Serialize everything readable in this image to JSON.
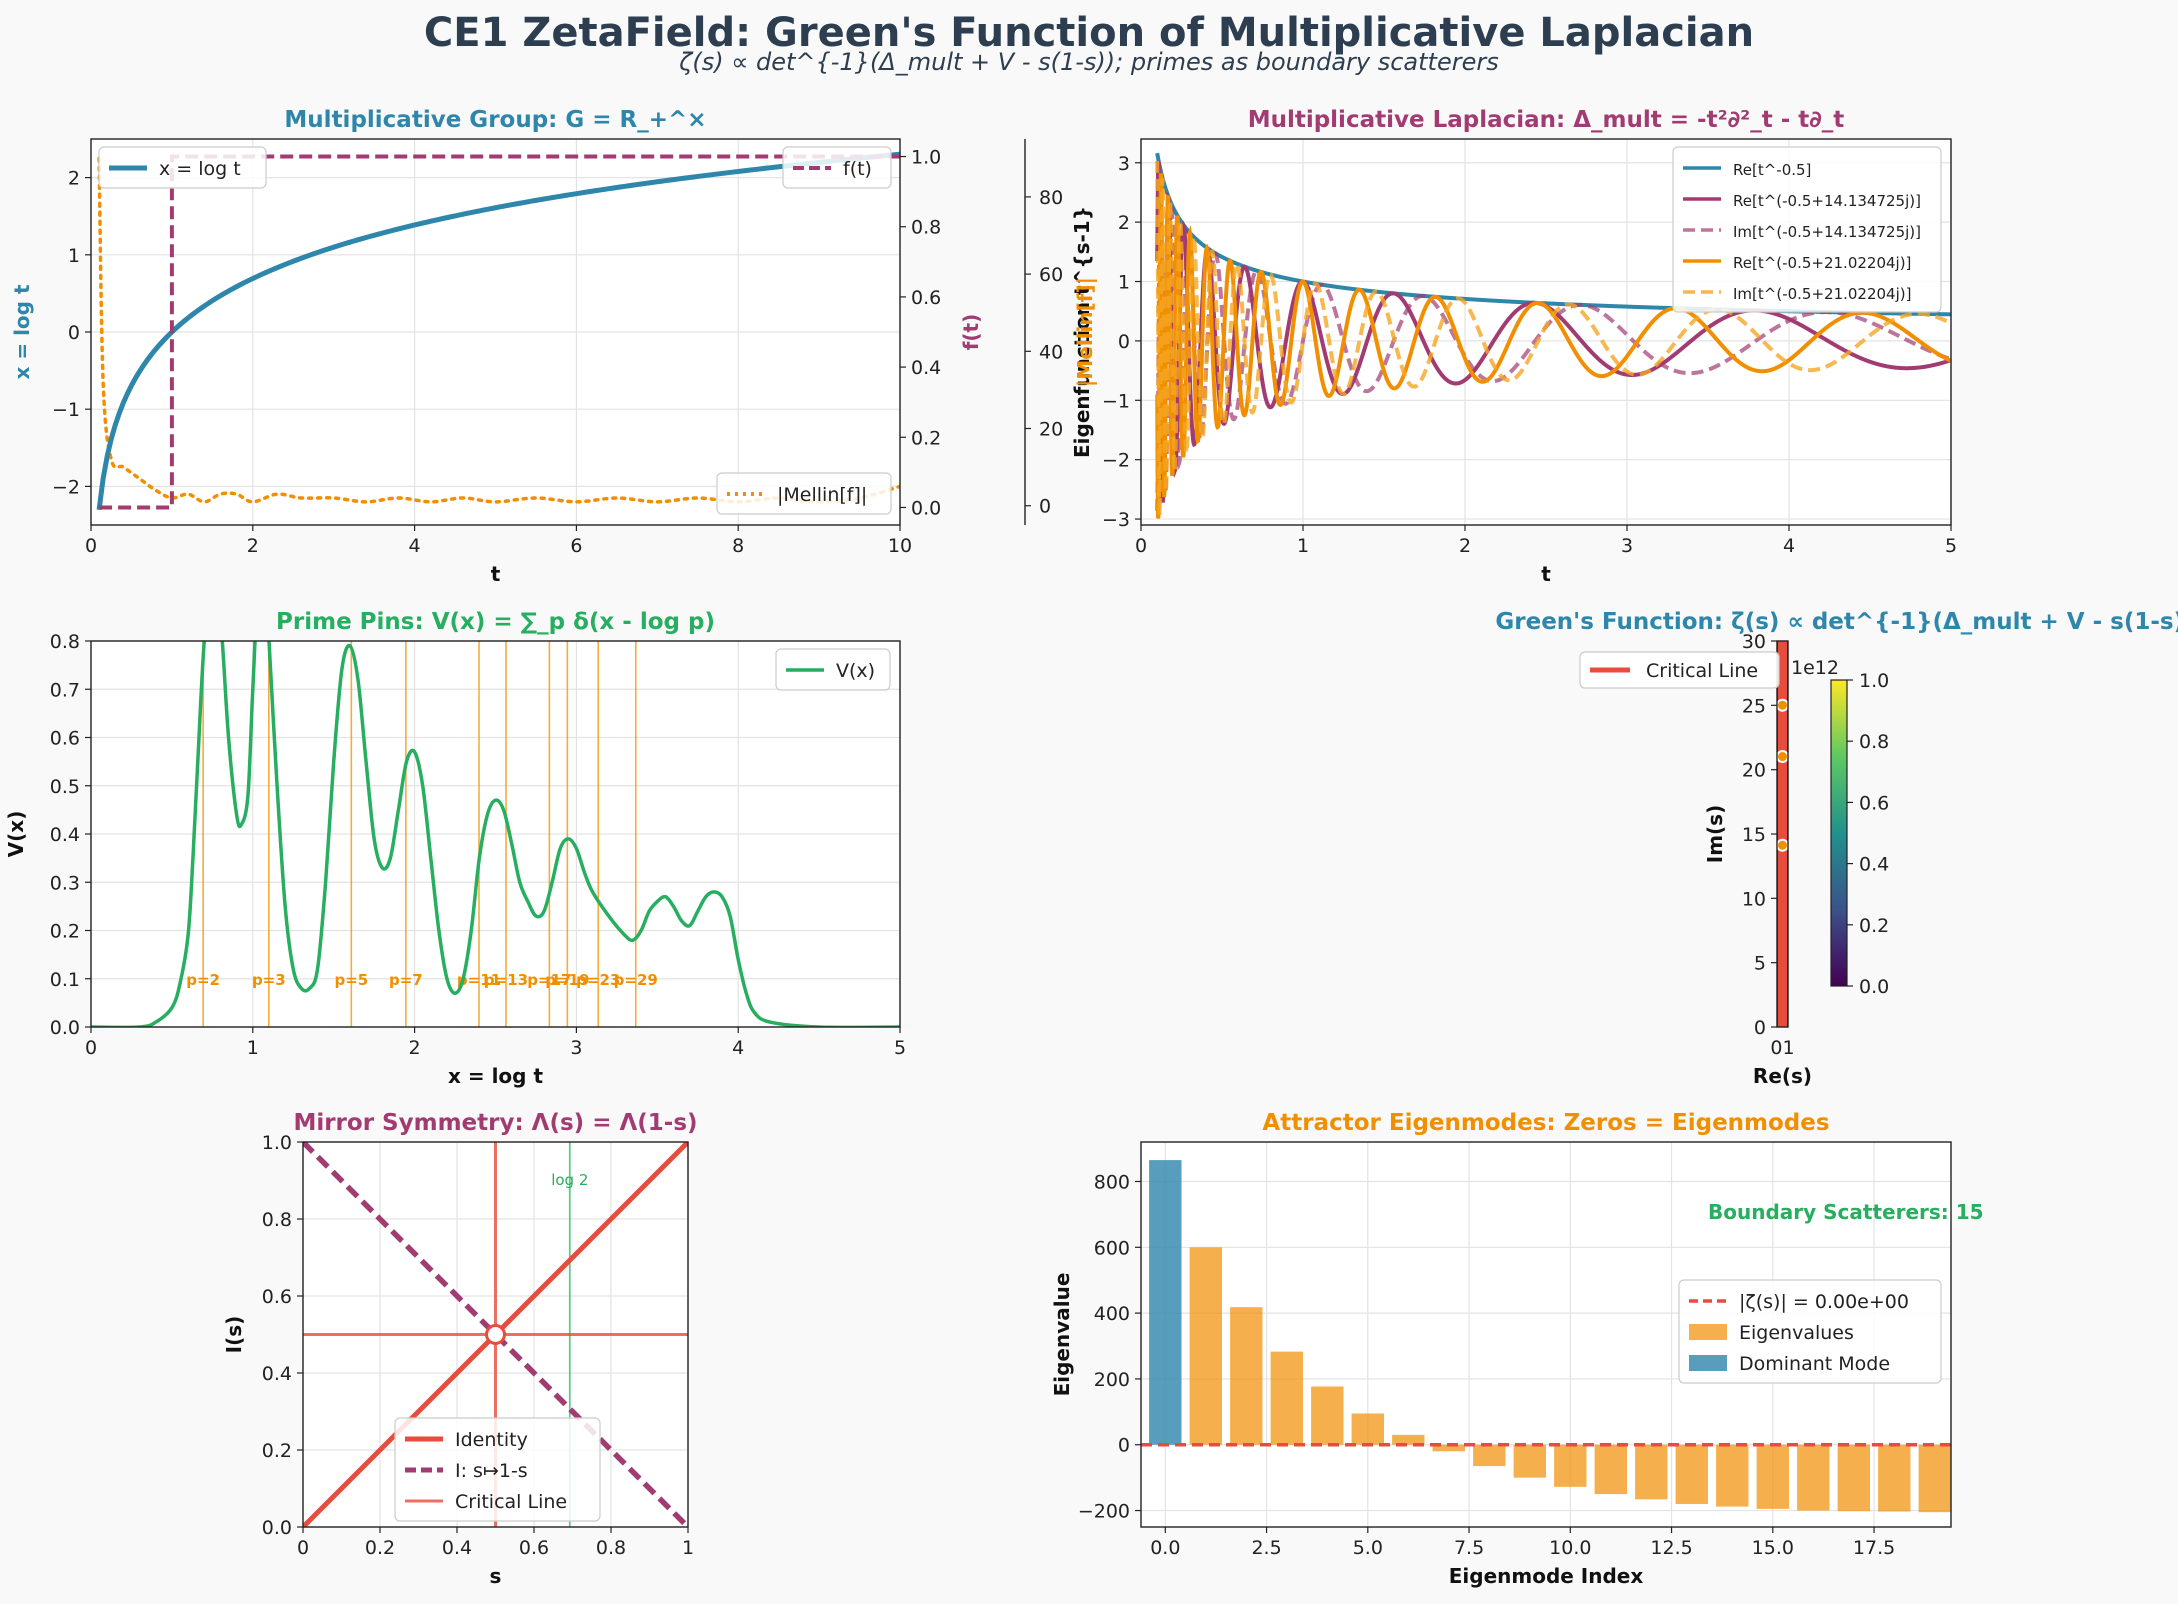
{
  "figure": {
    "title": "CE1 ZetaField: Green's Function of Multiplicative Laplacian",
    "subtitle": "ζ(s) ∝ det^{-1}(Δ_mult + V - s(1-s)); primes as boundary scatterers"
  },
  "colors": {
    "blue": "#2e86ab",
    "purple": "#a23b72",
    "orange": "#f18f01",
    "green": "#27ae60",
    "red": "#e74c3c",
    "text": "#2c3e50"
  },
  "chart_data": [
    {
      "id": "mult_group",
      "type": "line",
      "title": "Multiplicative Group: G = R_+^×",
      "xlabel": "t",
      "ylabel": "x = log t",
      "ylabel_right": "f(t)",
      "xlim": [
        0,
        10
      ],
      "ylim": [
        -2.5,
        2.5
      ],
      "ylim_right": [
        -0.05,
        1.05
      ],
      "xticks": [
        0,
        2,
        4,
        6,
        8,
        10
      ],
      "yticks": [
        -2,
        -1,
        0,
        1,
        2
      ],
      "yticks_right": [
        0.0,
        0.2,
        0.4,
        0.6,
        0.8,
        1.0
      ],
      "parasite_axis": {
        "ylabel": "|Mellin[f]|",
        "ylim": [
          -5,
          95
        ],
        "yticks": [
          0,
          20,
          40,
          60,
          80
        ]
      },
      "grid": true,
      "series": [
        {
          "name": "x = log t",
          "function": "log(t)",
          "x_range": [
            0.1,
            10
          ],
          "axis": "left"
        },
        {
          "name": "f(t)",
          "x": [
            0.1,
            1.0,
            1.0,
            10
          ],
          "y": [
            0,
            0,
            1,
            1
          ],
          "axis": "right"
        },
        {
          "name": "|Mellin[f]|",
          "x": [
            0.1,
            0.15,
            0.25,
            0.4,
            0.6,
            0.8,
            1.0,
            1.2,
            1.4,
            1.6,
            1.8,
            2.0,
            2.3,
            2.6,
            3.0,
            3.4,
            3.8,
            4.2,
            4.6,
            5.0,
            5.5,
            6.0,
            6.5,
            7.0,
            7.5,
            8.0,
            8.5,
            9.0,
            9.5,
            10.0
          ],
          "y": [
            90,
            32,
            12,
            10,
            7,
            4,
            2,
            3,
            1,
            3,
            3,
            1,
            3,
            2,
            2,
            1,
            2,
            1,
            2,
            1,
            2,
            1,
            2,
            1,
            2,
            1,
            2,
            1,
            2,
            5
          ],
          "axis": "parasite"
        }
      ],
      "legend": [
        {
          "label": "x = log t",
          "loc": "upper left"
        },
        {
          "label": "f(t)",
          "loc": "upper right"
        },
        {
          "label": "|Mellin[f]|",
          "loc": "lower right"
        }
      ]
    },
    {
      "id": "mult_laplacian",
      "type": "line",
      "title": "Multiplicative Laplacian: Δ_mult = -t²∂²_t - t∂_t",
      "xlabel": "t",
      "ylabel": "Eigenfunction t^{s-1}",
      "xlim": [
        0,
        5
      ],
      "ylim": [
        -3.1,
        3.4
      ],
      "xticks": [
        0,
        1,
        2,
        3,
        4,
        5
      ],
      "yticks": [
        -3,
        -2,
        -1,
        0,
        1,
        2,
        3
      ],
      "overlap_label": "|Mellin[f]|",
      "grid": true,
      "series": [
        {
          "name": "Re[t^-0.5]",
          "sigma": -0.5,
          "gamma": 0,
          "part": "re"
        },
        {
          "name": "Re[t^(-0.5+14.134725j)]",
          "sigma": -0.5,
          "gamma": 14.134725,
          "part": "re"
        },
        {
          "name": "Im[t^(-0.5+14.134725j)]",
          "sigma": -0.5,
          "gamma": 14.134725,
          "part": "im"
        },
        {
          "name": "Re[t^(-0.5+21.02204j)]",
          "sigma": -0.5,
          "gamma": 21.02204,
          "part": "re"
        },
        {
          "name": "Im[t^(-0.5+21.02204j)]",
          "sigma": -0.5,
          "gamma": 21.02204,
          "part": "im"
        }
      ],
      "x_range": [
        0.1,
        5
      ],
      "legend": {
        "loc": "upper right"
      }
    },
    {
      "id": "prime_pins",
      "type": "line",
      "title": "Prime Pins: V(x) = ∑_p δ(x - log p)",
      "xlabel": "x = log t",
      "ylabel": "V(x)",
      "xlim": [
        0,
        5
      ],
      "ylim": [
        0,
        0.8
      ],
      "xticks": [
        0,
        1,
        2,
        3,
        4,
        5
      ],
      "yticks": [
        0.0,
        0.1,
        0.2,
        0.3,
        0.4,
        0.5,
        0.6,
        0.7,
        0.8
      ],
      "grid": true,
      "series": [
        {
          "name": "V(x)",
          "x": [
            0,
            0.3,
            0.4,
            0.5,
            0.55,
            0.6,
            0.63,
            0.66,
            0.7,
            0.75,
            0.8,
            0.85,
            0.9,
            0.93,
            0.97,
            1.0,
            1.04,
            1.08,
            1.1,
            1.15,
            1.2,
            1.25,
            1.3,
            1.35,
            1.4,
            1.45,
            1.5,
            1.55,
            1.6,
            1.65,
            1.7,
            1.75,
            1.8,
            1.85,
            1.9,
            1.95,
            2.0,
            2.05,
            2.1,
            2.15,
            2.2,
            2.25,
            2.3,
            2.35,
            2.4,
            2.45,
            2.5,
            2.55,
            2.6,
            2.65,
            2.7,
            2.75,
            2.8,
            2.85,
            2.9,
            2.95,
            3.0,
            3.05,
            3.1,
            3.2,
            3.3,
            3.35,
            3.4,
            3.45,
            3.5,
            3.55,
            3.6,
            3.65,
            3.7,
            3.75,
            3.8,
            3.85,
            3.9,
            3.95,
            4.0,
            4.05,
            4.1,
            4.2,
            4.5,
            5.0
          ],
          "y": [
            0,
            0,
            0.01,
            0.04,
            0.09,
            0.19,
            0.35,
            0.55,
            0.8,
            0.95,
            0.85,
            0.6,
            0.44,
            0.42,
            0.48,
            0.7,
            0.95,
            0.9,
            0.8,
            0.5,
            0.25,
            0.12,
            0.08,
            0.08,
            0.12,
            0.3,
            0.55,
            0.74,
            0.79,
            0.72,
            0.55,
            0.39,
            0.33,
            0.35,
            0.45,
            0.55,
            0.57,
            0.5,
            0.35,
            0.2,
            0.1,
            0.07,
            0.1,
            0.2,
            0.35,
            0.44,
            0.47,
            0.45,
            0.38,
            0.3,
            0.26,
            0.23,
            0.24,
            0.3,
            0.37,
            0.39,
            0.37,
            0.32,
            0.28,
            0.23,
            0.19,
            0.18,
            0.2,
            0.24,
            0.26,
            0.27,
            0.25,
            0.22,
            0.21,
            0.24,
            0.27,
            0.28,
            0.27,
            0.23,
            0.14,
            0.07,
            0.03,
            0.01,
            0,
            0
          ]
        }
      ],
      "prime_lines": [
        {
          "label": "p=2",
          "x": 0.693
        },
        {
          "label": "p=3",
          "x": 1.099
        },
        {
          "label": "p=5",
          "x": 1.609
        },
        {
          "label": "p=7",
          "x": 1.946
        },
        {
          "label": "p=11",
          "x": 2.398
        },
        {
          "label": "p=13",
          "x": 2.565
        },
        {
          "label": "p=17",
          "x": 2.833
        },
        {
          "label": "p=19",
          "x": 2.944
        },
        {
          "label": "p=23",
          "x": 3.135
        },
        {
          "label": "p=29",
          "x": 3.367
        }
      ],
      "legend": {
        "loc": "upper right"
      }
    },
    {
      "id": "greens_function",
      "type": "heatmap",
      "title": "Green's Function: ζ(s) ∝ det^{-1}(Δ_mult + V - s(1-s))",
      "xlabel": "Re(s)",
      "ylabel": "Im(s)",
      "xlim": [
        0,
        1
      ],
      "ylim": [
        0,
        30
      ],
      "xtick_labels": [
        "0",
        "1"
      ],
      "yticks": [
        0,
        5,
        10,
        15,
        20,
        25,
        30
      ],
      "colorbar": {
        "ticks": [
          0.0,
          0.2,
          0.4,
          0.6,
          0.8,
          1.0
        ],
        "scale_label": "1e12"
      },
      "zeros_im": [
        14.13,
        21.02,
        25.01
      ],
      "series": [
        {
          "name": "Critical Line",
          "x": 0.5
        }
      ],
      "legend": {
        "loc": "upper left"
      }
    },
    {
      "id": "mirror",
      "type": "line",
      "title": "Mirror Symmetry: Λ(s) = Λ(1-s)",
      "xlabel": "s",
      "ylabel": "I(s)",
      "xlim": [
        0,
        1
      ],
      "ylim": [
        0,
        1
      ],
      "xticks": [
        0.0,
        0.2,
        0.4,
        0.6,
        0.8,
        1.0
      ],
      "yticks": [
        0.0,
        0.2,
        0.4,
        0.6,
        0.8,
        1.0
      ],
      "grid": true,
      "series": [
        {
          "name": "Identity",
          "x": [
            0,
            1
          ],
          "y": [
            0,
            1
          ]
        },
        {
          "name": "I: s↦1-s",
          "x": [
            0,
            1
          ],
          "y": [
            1,
            0
          ]
        },
        {
          "name": "Critical Line",
          "x_line": 0.5,
          "y_line": 0.5
        }
      ],
      "vline": {
        "label": "log 2",
        "x": 0.693
      },
      "fixed_point": [
        0.5,
        0.5
      ],
      "legend": {
        "loc": "lower center"
      }
    },
    {
      "id": "eigenmodes",
      "type": "bar",
      "title": "Attractor Eigenmodes: Zeros = Eigenmodes",
      "xlabel": "Eigenmode Index",
      "ylabel": "Eigenvalue",
      "xlim": [
        -0.6,
        19.4
      ],
      "ylim": [
        -250,
        920
      ],
      "xtick_labels": [
        "0.0",
        "2.5",
        "5.0",
        "7.5",
        "10.0",
        "12.5",
        "15.0",
        "17.5"
      ],
      "xticks": [
        0,
        2.5,
        5,
        7.5,
        10,
        12.5,
        15,
        17.5
      ],
      "yticks": [
        -200,
        0,
        200,
        400,
        600,
        800
      ],
      "grid": true,
      "categories": [
        0,
        1,
        2,
        3,
        4,
        5,
        6,
        7,
        8,
        9,
        10,
        11,
        12,
        13,
        14,
        15,
        16,
        17,
        18,
        19
      ],
      "values": [
        865,
        600,
        418,
        283,
        177,
        95,
        30,
        -20,
        -65,
        -100,
        -128,
        -150,
        -166,
        -180,
        -188,
        -195,
        -200,
        -202,
        -203,
        -205
      ],
      "series": [
        {
          "name": "Eigenvalues"
        },
        {
          "name": "Dominant Mode"
        }
      ],
      "hline": {
        "label": "|ζ(s)| = 0.00e+00",
        "y": 0
      },
      "annotation": "Boundary Scatterers: 15",
      "legend": {
        "loc": "center right"
      }
    }
  ]
}
